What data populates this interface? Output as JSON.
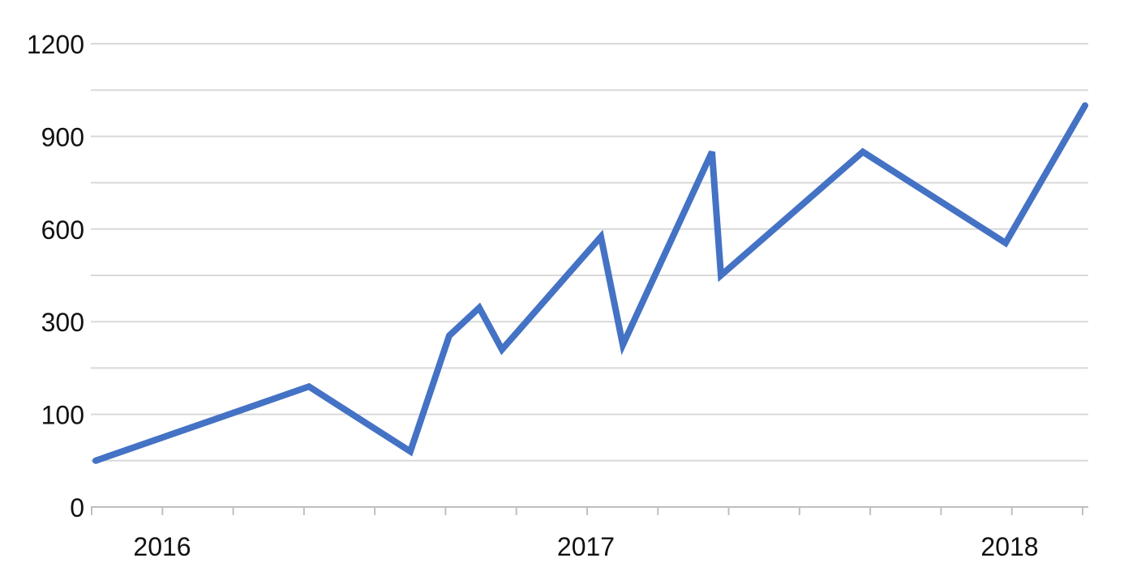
{
  "chart_data": {
    "type": "line",
    "title": "",
    "xlabel": "",
    "ylabel": "",
    "y_tick_labels": [
      "0",
      "100",
      "300",
      "600",
      "900",
      "1200"
    ],
    "x_tick_labels": [
      "2016",
      "2017",
      "2018"
    ],
    "grid": true,
    "legend": "none",
    "colors": {
      "line": "#4472c4",
      "grid": "#d9d9d9",
      "axis": "#bfbfbf"
    },
    "series": [
      {
        "values": [
          {
            "x": "2015-10",
            "y": 50
          },
          {
            "x": "2016-06",
            "y": 160
          },
          {
            "x": "2016-09",
            "y": 60
          },
          {
            "x": "2016-10",
            "y": 270
          },
          {
            "x": "2016-11",
            "y": 345
          },
          {
            "x": "2016-11",
            "y": 240
          },
          {
            "x": "2017-02",
            "y": 575
          },
          {
            "x": "2017-03",
            "y": 250
          },
          {
            "x": "2017-06",
            "y": 850
          },
          {
            "x": "2017-06",
            "y": 450
          },
          {
            "x": "2017-10",
            "y": 850
          },
          {
            "x": "2018-02",
            "y": 555
          },
          {
            "x": "2018-05",
            "y": 1000
          }
        ]
      }
    ]
  }
}
